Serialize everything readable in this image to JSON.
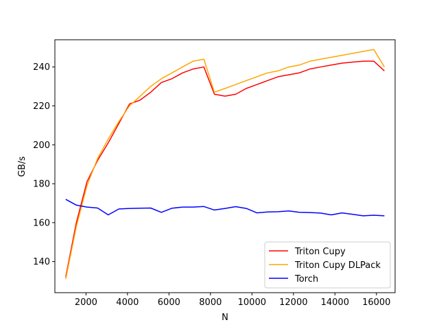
{
  "chart_data": {
    "type": "line",
    "xlabel": "N",
    "ylabel": "GB/s",
    "xlim": [
      500,
      16900
    ],
    "ylim": [
      124,
      254
    ],
    "xticks": [
      2000,
      4000,
      6000,
      8000,
      10000,
      12000,
      14000,
      16000
    ],
    "yticks": [
      140,
      160,
      180,
      200,
      220,
      240
    ],
    "grid": false,
    "legend_position": "lower-right",
    "series": [
      {
        "name": "Triton Cupy",
        "color": "#ff0000",
        "x": [
          1024,
          1536,
          2048,
          2560,
          3072,
          3584,
          4096,
          4608,
          5120,
          5632,
          6144,
          6656,
          7168,
          7680,
          8192,
          8704,
          9216,
          9728,
          10240,
          10752,
          11264,
          11776,
          12288,
          12800,
          13312,
          13824,
          14336,
          14848,
          15360,
          15872,
          16384
        ],
        "y": [
          132,
          160,
          181,
          192,
          201,
          211,
          221,
          223,
          227,
          232,
          234,
          237,
          239,
          240,
          226,
          225,
          226,
          229,
          231,
          233,
          235,
          236,
          237,
          239,
          240,
          241,
          242,
          242.5,
          243,
          243,
          238
        ]
      },
      {
        "name": "Triton Cupy DLPack",
        "color": "#ffa500",
        "x": [
          1024,
          1536,
          2048,
          2560,
          3072,
          3584,
          4096,
          4608,
          5120,
          5632,
          6144,
          6656,
          7168,
          7680,
          8192,
          8704,
          9216,
          9728,
          10240,
          10752,
          11264,
          11776,
          12288,
          12800,
          13312,
          13824,
          14336,
          14848,
          15360,
          15872,
          16384
        ],
        "y": [
          131,
          158,
          179,
          193,
          203,
          212,
          220,
          225,
          230,
          234,
          237,
          240,
          243,
          244,
          227,
          229,
          231,
          233,
          235,
          237,
          238,
          240,
          241,
          243,
          244,
          245,
          246,
          247,
          248,
          249,
          240
        ]
      },
      {
        "name": "Torch",
        "color": "#0000ff",
        "x": [
          1024,
          1536,
          2048,
          2560,
          3072,
          3584,
          4096,
          4608,
          5120,
          5632,
          6144,
          6656,
          7168,
          7680,
          8192,
          8704,
          9216,
          9728,
          10240,
          10752,
          11264,
          11776,
          12288,
          12800,
          13312,
          13824,
          14336,
          14848,
          15360,
          15872,
          16384
        ],
        "y": [
          172,
          169,
          168,
          167.5,
          164,
          167,
          167.3,
          167.4,
          167.5,
          165.3,
          167.4,
          168,
          168,
          168.3,
          166.5,
          167.3,
          168.2,
          167.3,
          165,
          165.5,
          165.6,
          166,
          165.3,
          165.2,
          164.9,
          164,
          165,
          164.3,
          163.5,
          163.8,
          163.5
        ]
      }
    ]
  }
}
